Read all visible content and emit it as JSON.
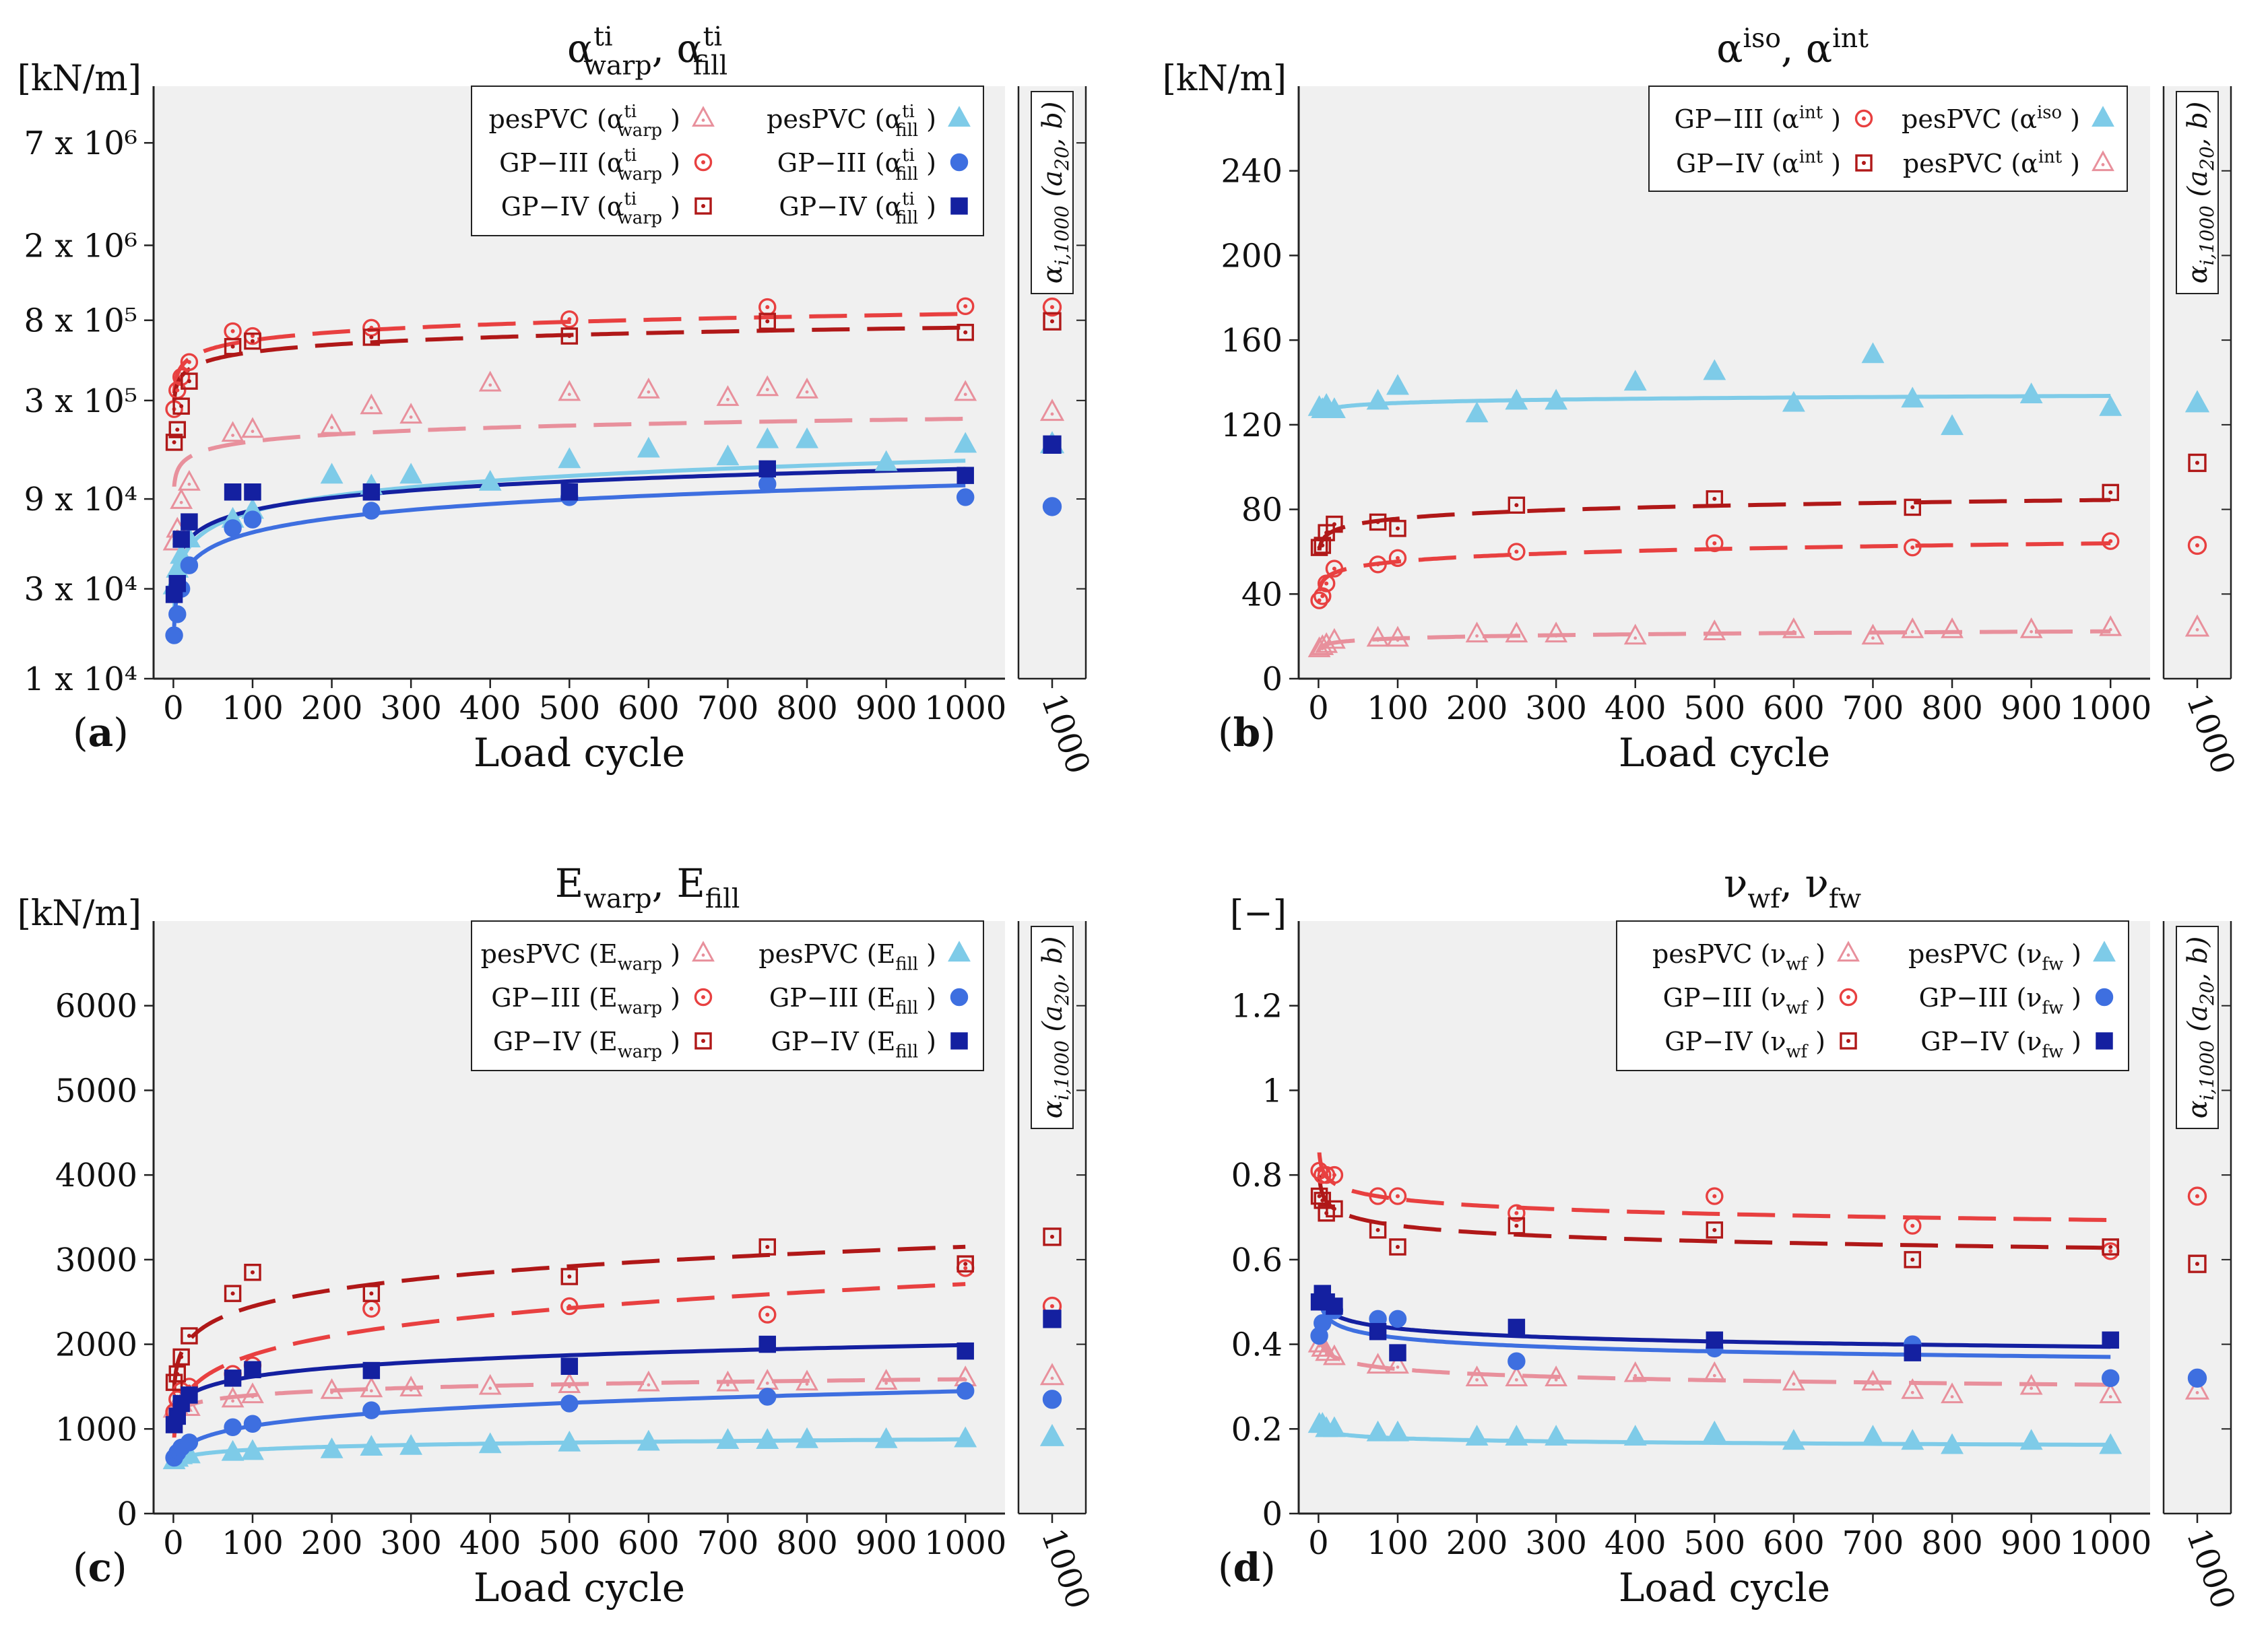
{
  "colors": {
    "pes_warp": "#e8909c",
    "gp3_warp": "#e84040",
    "gp4_warp": "#b01818",
    "pes_fill": "#7ecbe8",
    "gp3_fill": "#3e6fe0",
    "gp4_fill": "#1420a0",
    "panel_bg": "#f0f0f0",
    "axis": "#222222"
  },
  "common": {
    "xlabel": "Load cycle",
    "side_tick": "1000",
    "side_label": "αi,1000 (a20, b)",
    "x_ticks": [
      0,
      100,
      200,
      300,
      400,
      500,
      600,
      700,
      800,
      900,
      1000
    ]
  },
  "chart_data": [
    {
      "panel": "(a)",
      "type": "scatter",
      "title": "αtiwarp, αtifill",
      "unit": "[kN/m]",
      "xlabel": "Load cycle",
      "yscale": "log",
      "ylim": [
        10000,
        14000000
      ],
      "y_ticks": [
        10000,
        30000,
        90000,
        300000,
        800000,
        2000000,
        7000000
      ],
      "y_tick_labels": [
        "1 x 10⁴",
        "3 x 10⁴",
        "9 x 10⁴",
        "3 x 10⁵",
        "8 x 10⁵",
        "2 x 10⁶",
        "7 x 10⁶"
      ],
      "legend": [
        "pesPVC (αtiwarp)",
        "GP−III (αtiwarp)",
        "GP−IV (αtiwarp)",
        "pesPVC (αtifill)",
        "GP−III (αtifill)",
        "GP−IV (αtifill)"
      ],
      "series": [
        {
          "name": "pesPVC (αtiwarp)",
          "marker": "tri-open",
          "color": "pes_warp",
          "dash": true,
          "x": [
            1,
            5,
            10,
            20,
            75,
            100,
            200,
            250,
            300,
            400,
            500,
            600,
            700,
            750,
            800,
            1000
          ],
          "y": [
            53000,
            62000,
            88000,
            110000,
            200000,
            210000,
            220000,
            280000,
            250000,
            370000,
            330000,
            340000,
            310000,
            350000,
            340000,
            330000
          ],
          "a20": 150000,
          "b": 0.12,
          "side": 260000
        },
        {
          "name": "GP−III (αtiwarp)",
          "marker": "circ-open",
          "color": "gp3_warp",
          "dash": true,
          "x": [
            1,
            5,
            10,
            20,
            75,
            100,
            250,
            500,
            750,
            1000
          ],
          "y": [
            270000,
            340000,
            400000,
            480000,
            700000,
            660000,
            730000,
            810000,
            940000,
            950000
          ],
          "a20": 500000,
          "b": 0.14,
          "side": 940000
        },
        {
          "name": "GP−IV (αtiwarp)",
          "marker": "sq-open",
          "color": "gp4_warp",
          "dash": true,
          "x": [
            1,
            5,
            10,
            20,
            75,
            100,
            250,
            500,
            750,
            1000
          ],
          "y": [
            180000,
            210000,
            280000,
            380000,
            580000,
            620000,
            650000,
            660000,
            790000,
            690000
          ],
          "a20": 440000,
          "b": 0.13,
          "side": 790000
        },
        {
          "name": "pesPVC (αtifill)",
          "marker": "tri-fill",
          "color": "pes_fill",
          "dash": false,
          "x": [
            1,
            5,
            10,
            20,
            75,
            100,
            200,
            250,
            300,
            400,
            500,
            600,
            700,
            750,
            800,
            900,
            1000
          ],
          "y": [
            31000,
            38000,
            45000,
            55000,
            70000,
            78000,
            120000,
            105000,
            120000,
            110000,
            145000,
            165000,
            150000,
            185000,
            185000,
            140000,
            175000
          ],
          "a20": 50000,
          "b": 0.27,
          "side": 175000
        },
        {
          "name": "GP−III (αtifill)",
          "marker": "circ-fill",
          "color": "gp3_fill",
          "dash": false,
          "x": [
            1,
            5,
            10,
            20,
            75,
            100,
            250,
            500,
            750,
            1000
          ],
          "y": [
            17000,
            22000,
            30000,
            40000,
            63000,
            70000,
            78000,
            92000,
            108000,
            92000
          ],
          "a20": 40000,
          "b": 0.25,
          "side": 82000
        },
        {
          "name": "GP−IV (αtifill)",
          "marker": "sq-fill",
          "color": "gp4_fill",
          "dash": false,
          "x": [
            1,
            5,
            10,
            20,
            75,
            100,
            250,
            500,
            750,
            1000
          ],
          "y": [
            28000,
            32000,
            55000,
            68000,
            98000,
            98000,
            98000,
            98000,
            130000,
            120000
          ],
          "a20": 55000,
          "b": 0.22,
          "side": 175000
        }
      ]
    },
    {
      "panel": "(b)",
      "type": "scatter",
      "title": "αiso, αint",
      "unit": "[kN/m]",
      "xlabel": "Load cycle",
      "yscale": "linear",
      "ylim": [
        0,
        280
      ],
      "y_ticks": [
        0,
        40,
        80,
        120,
        160,
        200,
        240
      ],
      "y_tick_labels": [
        "0",
        "40",
        "80",
        "120",
        "160",
        "200",
        "240"
      ],
      "legend": [
        "GP−III (αint)",
        "GP−IV (αint)",
        "pesPVC (αiso)",
        "pesPVC (αint)"
      ],
      "series": [
        {
          "name": "GP−III (αint)",
          "marker": "circ-open",
          "color": "gp3_warp",
          "dash": true,
          "x": [
            1,
            5,
            10,
            20,
            75,
            100,
            250,
            500,
            750,
            1000
          ],
          "y": [
            37,
            39,
            45,
            52,
            54,
            57,
            60,
            64,
            62,
            65
          ],
          "a20": 50,
          "b": 0.063,
          "side": 63
        },
        {
          "name": "GP−IV (αint)",
          "marker": "sq-open",
          "color": "gp4_warp",
          "dash": true,
          "x": [
            1,
            5,
            10,
            20,
            75,
            100,
            250,
            500,
            750,
            1000
          ],
          "y": [
            62,
            63,
            69,
            73,
            74,
            71,
            82,
            85,
            81,
            88
          ],
          "a20": 70,
          "b": 0.048,
          "side": 102
        },
        {
          "name": "pesPVC (αiso)",
          "marker": "tri-fill",
          "color": "pes_fill",
          "dash": false,
          "x": [
            1,
            5,
            10,
            20,
            75,
            100,
            200,
            250,
            300,
            400,
            500,
            600,
            700,
            750,
            800,
            900,
            1000
          ],
          "y": [
            128,
            127,
            129,
            127,
            131,
            138,
            125,
            131,
            131,
            140,
            145,
            130,
            153,
            132,
            119,
            134,
            128
          ],
          "a20": 128,
          "b": 0.011,
          "side": 130
        },
        {
          "name": "pesPVC (αint)",
          "marker": "tri-open",
          "color": "pes_warp",
          "dash": true,
          "x": [
            1,
            5,
            10,
            20,
            75,
            100,
            200,
            250,
            300,
            400,
            500,
            600,
            700,
            750,
            800,
            900,
            1000
          ],
          "y": [
            14,
            15,
            16,
            18,
            19,
            19,
            21,
            21,
            21,
            20,
            22,
            23,
            20,
            23,
            23,
            23,
            24
          ],
          "a20": 17,
          "b": 0.07,
          "side": 24
        }
      ]
    },
    {
      "panel": "(c)",
      "type": "scatter",
      "title": "Ewarp, Efill",
      "unit": "[kN/m]",
      "xlabel": "Load cycle",
      "yscale": "linear",
      "ylim": [
        0,
        7000
      ],
      "y_ticks": [
        0,
        1000,
        2000,
        3000,
        4000,
        5000,
        6000
      ],
      "y_tick_labels": [
        "0",
        "1000",
        "2000",
        "3000",
        "4000",
        "5000",
        "6000"
      ],
      "legend": [
        "pesPVC (Ewarp)",
        "GP−III (Ewarp)",
        "GP−IV (Ewarp)",
        "pesPVC (Efill)",
        "GP−III (Efill)",
        "GP−IV (Efill)"
      ],
      "series": [
        {
          "name": "pesPVC (Ewarp)",
          "marker": "tri-open",
          "color": "pes_warp",
          "dash": true,
          "x": [
            1,
            5,
            10,
            20,
            75,
            100,
            200,
            250,
            300,
            400,
            500,
            600,
            700,
            750,
            800,
            900,
            1000
          ],
          "y": [
            1230,
            1260,
            1300,
            1250,
            1350,
            1400,
            1450,
            1470,
            1480,
            1500,
            1520,
            1540,
            1540,
            1560,
            1550,
            1560,
            1600
          ],
          "a20": 1280,
          "b": 0.055,
          "side": 1620
        },
        {
          "name": "GP−III (Ewarp)",
          "marker": "circ-open",
          "color": "gp3_warp",
          "dash": true,
          "x": [
            1,
            5,
            10,
            20,
            75,
            100,
            250,
            500,
            750,
            1000
          ],
          "y": [
            1200,
            1350,
            1450,
            1500,
            1650,
            1750,
            2420,
            2450,
            2350,
            2900
          ],
          "a20": 1450,
          "b": 0.16,
          "side": 2450
        },
        {
          "name": "GP−IV (Ewarp)",
          "marker": "sq-open",
          "color": "gp4_warp",
          "dash": true,
          "x": [
            1,
            5,
            10,
            20,
            75,
            100,
            250,
            500,
            750,
            1000
          ],
          "y": [
            1550,
            1650,
            1850,
            2100,
            2600,
            2850,
            2600,
            2800,
            3150,
            2950
          ],
          "a20": 2050,
          "b": 0.11,
          "side": 3270
        },
        {
          "name": "pesPVC (Efill)",
          "marker": "tri-fill",
          "color": "pes_fill",
          "dash": false,
          "x": [
            1,
            5,
            10,
            20,
            75,
            100,
            200,
            250,
            300,
            400,
            500,
            600,
            700,
            750,
            800,
            900,
            1000
          ],
          "y": [
            620,
            650,
            680,
            690,
            720,
            730,
            750,
            780,
            790,
            810,
            830,
            840,
            860,
            860,
            870,
            870,
            880
          ],
          "a20": 680,
          "b": 0.065,
          "side": 900
        },
        {
          "name": "GP−III (Efill)",
          "marker": "circ-fill",
          "color": "gp3_fill",
          "dash": false,
          "x": [
            1,
            5,
            10,
            20,
            75,
            100,
            250,
            500,
            750,
            1000
          ],
          "y": [
            660,
            720,
            780,
            840,
            1020,
            1060,
            1220,
            1300,
            1380,
            1450
          ],
          "a20": 820,
          "b": 0.145,
          "side": 1350
        },
        {
          "name": "GP−IV (Efill)",
          "marker": "sq-fill",
          "color": "gp4_fill",
          "dash": false,
          "x": [
            1,
            5,
            10,
            20,
            75,
            100,
            250,
            500,
            750,
            1000
          ],
          "y": [
            1050,
            1150,
            1300,
            1400,
            1600,
            1700,
            1690,
            1740,
            2000,
            1920
          ],
          "a20": 1400,
          "b": 0.09,
          "side": 2300
        }
      ]
    },
    {
      "panel": "(d)",
      "type": "scatter",
      "title": "νwf, νfw",
      "unit": "[−]",
      "xlabel": "Load cycle",
      "yscale": "linear",
      "ylim": [
        0,
        1.4
      ],
      "y_ticks": [
        0,
        0.2,
        0.4,
        0.6,
        0.8,
        1,
        1.2
      ],
      "y_tick_labels": [
        "0",
        "0.2",
        "0.4",
        "0.6",
        "0.8",
        "1",
        "1.2"
      ],
      "legend": [
        "pesPVC (νwf)",
        "GP−III (νwf)",
        "GP−IV (νwf)",
        "pesPVC (νfw)",
        "GP−III (νfw)",
        "GP−IV (νfw)"
      ],
      "series": [
        {
          "name": "pesPVC (νwf)",
          "marker": "tri-open",
          "color": "pes_warp",
          "dash": true,
          "x": [
            1,
            5,
            10,
            20,
            75,
            100,
            200,
            250,
            300,
            400,
            500,
            600,
            700,
            750,
            800,
            900,
            1000
          ],
          "y": [
            0.4,
            0.39,
            0.38,
            0.37,
            0.35,
            0.35,
            0.32,
            0.32,
            0.32,
            0.33,
            0.33,
            0.31,
            0.31,
            0.29,
            0.28,
            0.3,
            0.28
          ],
          "a20": 0.37,
          "b": -0.05,
          "side": 0.29
        },
        {
          "name": "GP−III (νwf)",
          "marker": "circ-open",
          "color": "gp3_warp",
          "dash": true,
          "x": [
            1,
            5,
            10,
            20,
            75,
            100,
            250,
            500,
            750,
            1000
          ],
          "y": [
            0.81,
            0.8,
            0.8,
            0.8,
            0.75,
            0.75,
            0.71,
            0.75,
            0.68,
            0.62
          ],
          "a20": 0.78,
          "b": -0.03,
          "side": 0.75
        },
        {
          "name": "GP−IV (νwf)",
          "marker": "sq-open",
          "color": "gp4_warp",
          "dash": true,
          "x": [
            1,
            5,
            10,
            20,
            75,
            100,
            250,
            500,
            750,
            1000
          ],
          "y": [
            0.75,
            0.74,
            0.71,
            0.72,
            0.67,
            0.63,
            0.68,
            0.67,
            0.6,
            0.63
          ],
          "a20": 0.72,
          "b": -0.035,
          "side": 0.59
        },
        {
          "name": "pesPVC (νfw)",
          "marker": "tri-fill",
          "color": "pes_fill",
          "dash": false,
          "x": [
            1,
            5,
            10,
            20,
            75,
            100,
            200,
            250,
            300,
            400,
            500,
            600,
            700,
            750,
            800,
            900,
            1000
          ],
          "y": [
            0.21,
            0.21,
            0.2,
            0.2,
            0.19,
            0.19,
            0.18,
            0.18,
            0.18,
            0.18,
            0.19,
            0.17,
            0.18,
            0.17,
            0.16,
            0.17,
            0.16
          ],
          "a20": 0.19,
          "b": -0.04,
          "side": null
        },
        {
          "name": "GP−III (νfw)",
          "marker": "circ-fill",
          "color": "gp3_fill",
          "dash": false,
          "x": [
            1,
            5,
            10,
            20,
            75,
            100,
            250,
            500,
            750,
            1000
          ],
          "y": [
            0.42,
            0.45,
            0.5,
            0.48,
            0.46,
            0.46,
            0.36,
            0.39,
            0.4,
            0.32
          ],
          "a20": 0.45,
          "b": -0.05,
          "side": 0.32
        },
        {
          "name": "GP−IV (νfw)",
          "marker": "sq-fill",
          "color": "gp4_fill",
          "dash": false,
          "x": [
            1,
            5,
            10,
            20,
            75,
            100,
            250,
            500,
            750,
            1000
          ],
          "y": [
            0.5,
            0.52,
            0.5,
            0.49,
            0.43,
            0.38,
            0.44,
            0.41,
            0.38,
            0.41
          ],
          "a20": 0.47,
          "b": -0.045,
          "side": null
        }
      ]
    }
  ]
}
